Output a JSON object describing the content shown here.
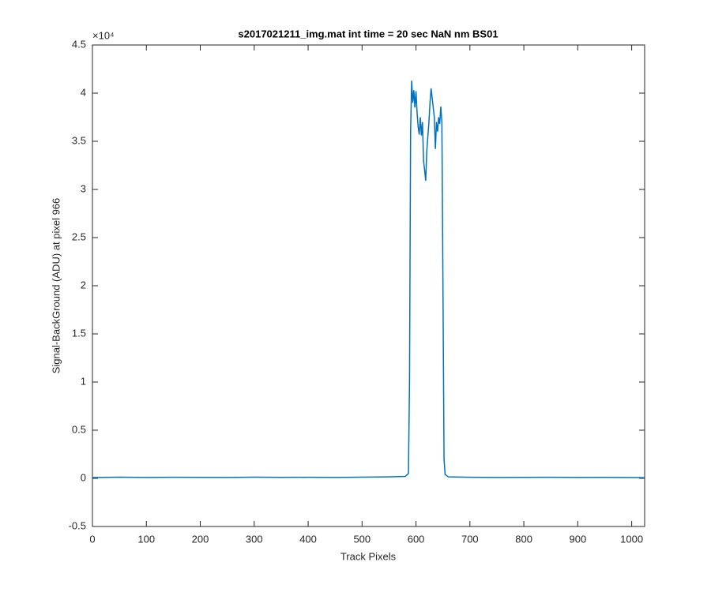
{
  "chart_data": {
    "type": "line",
    "title": "s2017021211_img.mat int time = 20 sec  NaN nm BS01",
    "x_label": "Track Pixels",
    "y_label": "Signal-BackGround (ADU) at pixel 966",
    "y_exponent": "×10⁴",
    "xlim": [
      0,
      1024
    ],
    "ylim": [
      -5000,
      45000
    ],
    "xticks": [
      0,
      100,
      200,
      300,
      400,
      500,
      600,
      700,
      800,
      900,
      1000
    ],
    "yticks": [
      {
        "value": -5000,
        "label": "-0.5"
      },
      0,
      {
        "value": 5000,
        "label": "0.5"
      },
      {
        "value": 10000,
        "label": "1"
      },
      {
        "value": 15000,
        "label": "1.5"
      },
      {
        "value": 20000,
        "label": "2"
      },
      {
        "value": 25000,
        "label": "2.5"
      },
      {
        "value": 30000,
        "label": "3"
      },
      {
        "value": 35000,
        "label": "3.5"
      },
      {
        "value": 40000,
        "label": "4"
      },
      {
        "value": 45000,
        "label": "4.5"
      }
    ],
    "series": [
      {
        "color": "#0072bd",
        "x": [
          0,
          50,
          100,
          150,
          200,
          250,
          300,
          350,
          400,
          450,
          500,
          550,
          580,
          586,
          588,
          590,
          592,
          594,
          596,
          598,
          600,
          602,
          604,
          606,
          608,
          610,
          612,
          614,
          616,
          618,
          620,
          622,
          624,
          626,
          628,
          630,
          632,
          634,
          636,
          638,
          640,
          642,
          644,
          646,
          648,
          650,
          652,
          654,
          660,
          700,
          750,
          800,
          850,
          900,
          950,
          1000,
          1024
        ],
        "values": [
          80,
          120,
          90,
          110,
          100,
          90,
          120,
          100,
          110,
          90,
          120,
          150,
          200,
          500,
          10000,
          36000,
          41300,
          39000,
          40300,
          38500,
          40200,
          38000,
          36500,
          35700,
          37500,
          35600,
          37000,
          33000,
          32000,
          30900,
          34000,
          35500,
          37000,
          39000,
          40500,
          39500,
          38500,
          37500,
          34200,
          37000,
          36000,
          37500,
          36800,
          38600,
          37000,
          20000,
          2000,
          400,
          150,
          110,
          90,
          100,
          110,
          90,
          100,
          80,
          70
        ]
      }
    ]
  }
}
